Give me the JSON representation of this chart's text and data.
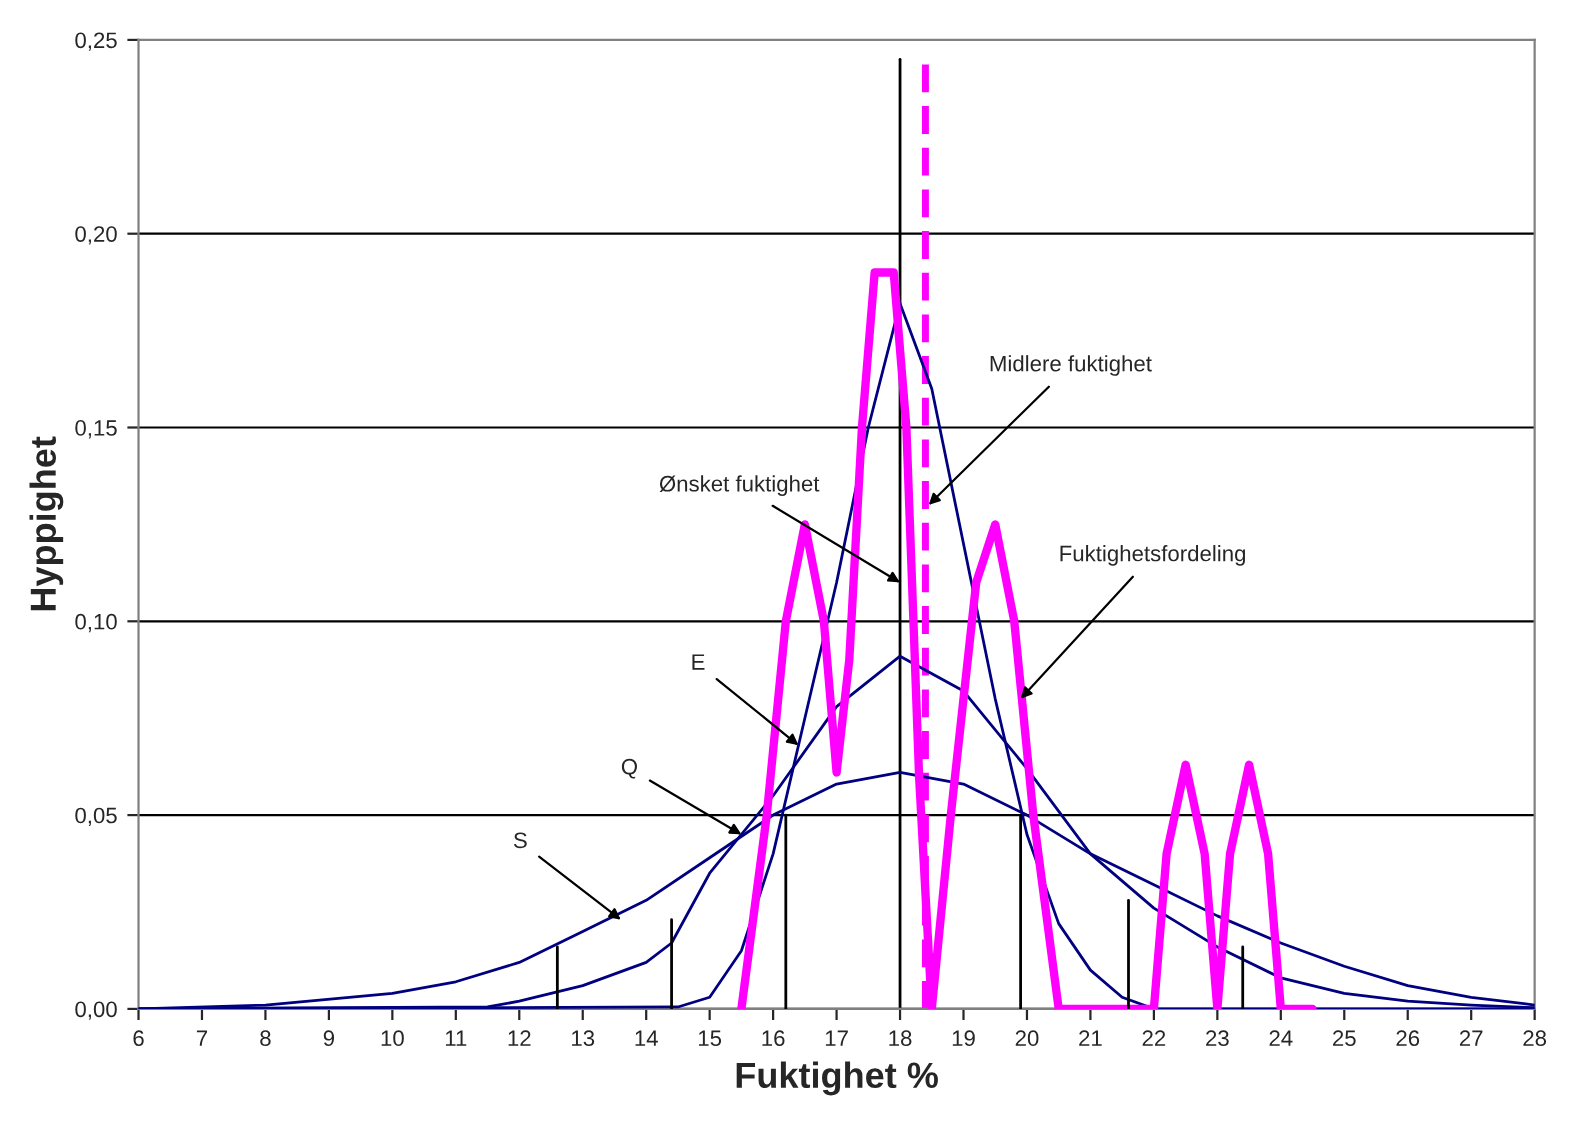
{
  "chart_data": {
    "type": "line",
    "xlabel": "Fuktighet %",
    "ylabel": "Hyppighet",
    "xlim": [
      6,
      28
    ],
    "xticks": [
      6,
      7,
      8,
      9,
      10,
      11,
      12,
      13,
      14,
      15,
      16,
      17,
      18,
      19,
      20,
      21,
      22,
      23,
      24,
      25,
      26,
      27,
      28
    ],
    "ylim": [
      0,
      0.25
    ],
    "yticks": [
      {
        "value": 0,
        "label": "0,00"
      },
      {
        "value": 0.05,
        "label": "0,05"
      },
      {
        "value": 0.1,
        "label": "0,10"
      },
      {
        "value": 0.15,
        "label": "0,15"
      },
      {
        "value": 0.2,
        "label": "0,20"
      },
      {
        "value": 0.25,
        "label": "0,25"
      }
    ],
    "grid": "y",
    "legend": false,
    "marker": "none",
    "line_style": "solid",
    "series": [
      {
        "color": "#000080",
        "x": [
          6,
          8,
          10,
          11,
          12,
          13,
          14,
          15,
          16,
          17,
          18,
          19,
          20,
          21,
          22,
          23,
          24,
          25,
          26,
          27,
          28
        ],
        "values": [
          0,
          0.001,
          0.004,
          0.007,
          0.012,
          0.02,
          0.028,
          0.039,
          0.05,
          0.058,
          0.061,
          0.058,
          0.05,
          0.04,
          0.032,
          0.024,
          0.017,
          0.011,
          0.006,
          0.003,
          0.001
        ]
      },
      {
        "color": "#000080",
        "x": [
          6,
          11.5,
          12,
          13,
          14,
          14.4,
          15,
          16,
          17,
          18,
          19,
          20,
          21,
          22,
          23,
          24,
          25,
          26,
          27,
          28
        ],
        "values": [
          0,
          0.0005,
          0.002,
          0.006,
          0.012,
          0.017,
          0.035,
          0.055,
          0.078,
          0.091,
          0.082,
          0.062,
          0.04,
          0.026,
          0.016,
          0.008,
          0.004,
          0.002,
          0.001,
          0.0003
        ]
      },
      {
        "color": "#000080",
        "x": [
          6,
          14.5,
          15,
          15.5,
          16,
          16.5,
          17,
          17.5,
          18,
          18.5,
          19,
          19.5,
          20,
          20.5,
          21,
          21.5,
          22,
          28
        ],
        "values": [
          0,
          0.0005,
          0.003,
          0.015,
          0.04,
          0.075,
          0.11,
          0.15,
          0.182,
          0.16,
          0.12,
          0.08,
          0.045,
          0.022,
          0.01,
          0.003,
          0,
          0
        ]
      },
      {
        "color": "#ff00ff",
        "x": [
          15.5,
          15.9,
          16.2,
          16.5,
          16.8,
          17,
          17.2,
          17.4,
          17.6,
          17.9,
          18.1,
          18.3,
          18.5,
          18.8,
          19.2,
          19.5,
          19.8,
          20.1,
          20.5,
          21,
          22,
          22.2,
          22.5,
          22.8,
          23,
          23.2,
          23.5,
          23.8,
          24,
          24.5
        ],
        "values": [
          0,
          0.05,
          0.1,
          0.125,
          0.1,
          0.061,
          0.09,
          0.15,
          0.19,
          0.19,
          0.15,
          0.06,
          0,
          0.05,
          0.11,
          0.125,
          0.1,
          0.05,
          0,
          0,
          0,
          0.04,
          0.063,
          0.04,
          0,
          0.04,
          0.063,
          0.04,
          0,
          0
        ]
      },
      {
        "color": "#000000",
        "x": [
          12.6,
          12.6
        ],
        "values": [
          0,
          0.016
        ]
      },
      {
        "color": "#000000",
        "x": [
          14.4,
          14.4
        ],
        "values": [
          0,
          0.023
        ]
      },
      {
        "color": "#000000",
        "x": [
          16.2,
          16.2
        ],
        "values": [
          0,
          0.05
        ]
      },
      {
        "color": "#000000",
        "x": [
          19.9,
          19.9
        ],
        "values": [
          0,
          0.05
        ]
      },
      {
        "color": "#000000",
        "x": [
          21.6,
          21.6
        ],
        "values": [
          0,
          0.028
        ]
      },
      {
        "color": "#000000",
        "x": [
          23.4,
          23.4
        ],
        "values": [
          0,
          0.016
        ]
      }
    ],
    "ref_lines": [
      {
        "axis": "x",
        "value": 18,
        "color": "#000000",
        "line_style": "solid"
      },
      {
        "axis": "x",
        "value": 18.4,
        "color": "#ff00ff",
        "line_style": "dashed"
      }
    ],
    "annotations": [
      {
        "text": "Midlere fuktighet",
        "x": 18.45,
        "y": 0.13
      },
      {
        "text": "Ønsket fuktighet",
        "x": 18.0,
        "y": 0.11
      },
      {
        "text": "Fuktighetsfordeling",
        "x": 19.9,
        "y": 0.08
      },
      {
        "text": "E",
        "x": 16.4,
        "y": 0.068
      },
      {
        "text": "Q",
        "x": 15.5,
        "y": 0.045
      },
      {
        "text": "S",
        "x": 13.6,
        "y": 0.023
      }
    ]
  }
}
